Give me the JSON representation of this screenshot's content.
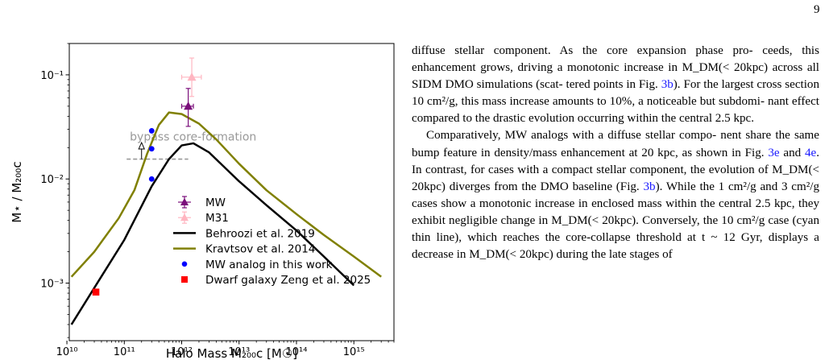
{
  "page_number": "9",
  "chart_data": {
    "type": "line",
    "xlabel": "Halo Mass M₂₀₀c [M☉]",
    "ylabel": "M⋆ / M₂₀₀c",
    "xscale": "log",
    "yscale": "log",
    "xlim": [
      11000000000.0,
      5000000000000000.0
    ],
    "ylim": [
      0.00028,
      0.2
    ],
    "x_ticks": [
      {
        "value": 10000000000.0,
        "label": "10¹⁰"
      },
      {
        "value": 100000000000.0,
        "label": "10¹¹"
      },
      {
        "value": 1000000000000.0,
        "label": "10¹²"
      },
      {
        "value": 10000000000000.0,
        "label": "10¹³"
      },
      {
        "value": 100000000000000.0,
        "label": "10¹⁴"
      },
      {
        "value": 1000000000000000.0,
        "label": "10¹⁵"
      }
    ],
    "y_ticks": [
      {
        "value": 0.001,
        "label": "10⁻³"
      },
      {
        "value": 0.01,
        "label": "10⁻²"
      },
      {
        "value": 0.1,
        "label": "10⁻¹"
      }
    ],
    "series": [
      {
        "name": "Behroozi et al. 2019",
        "kind": "line",
        "color": "#000000",
        "x": [
          12000000000.0,
          30000000000.0,
          100000000000.0,
          300000000000.0,
          600000000000.0,
          1000000000000.0,
          1600000000000.0,
          3000000000000.0,
          10000000000000.0,
          30000000000000.0,
          100000000000000.0,
          300000000000000.0,
          1000000000000000.0
        ],
        "y": [
          0.0004,
          0.0009,
          0.0026,
          0.0085,
          0.0155,
          0.021,
          0.022,
          0.018,
          0.0095,
          0.0056,
          0.0032,
          0.0018,
          0.00095
        ]
      },
      {
        "name": "Kravtsov et al. 2014",
        "kind": "line",
        "color": "#808000",
        "x": [
          12000000000.0,
          30000000000.0,
          80000000000.0,
          150000000000.0,
          250000000000.0,
          400000000000.0,
          600000000000.0,
          1000000000000.0,
          2000000000000.0,
          4000000000000.0,
          10000000000000.0,
          30000000000000.0,
          100000000000000.0,
          300000000000000.0,
          1000000000000000.0,
          3000000000000000.0
        ],
        "y": [
          0.00115,
          0.002,
          0.0042,
          0.0078,
          0.0175,
          0.033,
          0.0435,
          0.042,
          0.034,
          0.024,
          0.014,
          0.0078,
          0.0046,
          0.0029,
          0.0018,
          0.00115
        ]
      },
      {
        "name": "MW",
        "kind": "errorbar",
        "color": "#7b0f7b",
        "marker": "triangle",
        "x": [
          1300000000000.0
        ],
        "y": [
          0.05
        ],
        "xerr": [
          [
            1000000000000.0,
            1600000000000.0
          ]
        ],
        "yerr": [
          [
            0.032,
            0.074
          ]
        ]
      },
      {
        "name": "M31",
        "kind": "errorbar",
        "color": "#ffb6c1",
        "marker": "triangle",
        "x": [
          1500000000000.0
        ],
        "y": [
          0.095
        ],
        "xerr": [
          [
            1000000000000.0,
            2200000000000.0
          ]
        ],
        "yerr": [
          [
            0.062,
            0.145
          ]
        ]
      },
      {
        "name": "MW analog in this work",
        "kind": "scatter",
        "color": "#0000ff",
        "marker": "circle",
        "x": [
          300000000000.0,
          300000000000.0,
          300000000000.0
        ],
        "y": [
          0.029,
          0.0195,
          0.01
        ]
      },
      {
        "name": "Dwarf galaxy Zeng et al. 2025",
        "kind": "scatter",
        "color": "#ff0000",
        "marker": "square",
        "x": [
          32000000000.0
        ],
        "y": [
          0.00082
        ]
      }
    ],
    "legend_order": [
      "MW",
      "M31",
      "Behroozi et al. 2019",
      "Kravtsov et al. 2014",
      "MW analog in this work",
      "Dwarf galaxy Zeng et al. 2025"
    ],
    "legend_placement": "lower-left",
    "annotation": {
      "text": "bypass core-formation",
      "color": "#999999",
      "dashed_line": {
        "x": [
          110000000000.0,
          1300000000000.0
        ],
        "y": [
          0.0155,
          0.0155
        ]
      },
      "arrow": {
        "x": 200000000000.0,
        "y_from": 0.0155,
        "y_to": 0.022
      }
    },
    "grid": false
  },
  "text": {
    "paragraphs": [
      {
        "indent": false,
        "lines": [
          [
            {
              "t": "diffuse stellar component. As the core expansion phase pro-"
            }
          ],
          [
            {
              "t": "ceeds, this enhancement grows, driving a monotonic increase"
            }
          ],
          [
            {
              "t": "in M_DM(< 20kpc) across all SIDM DMO simulations (scat-"
            }
          ],
          [
            {
              "t": "tered points in Fig. "
            },
            {
              "t": "3b",
              "ref": true
            },
            {
              "t": "). For the largest cross section 10 cm²/g,"
            }
          ],
          [
            {
              "t": "this mass increase amounts to 10%, a noticeable but subdomi-"
            }
          ],
          [
            {
              "t": "nant effect compared to the drastic evolution occurring within"
            }
          ],
          [
            {
              "t": "the central 2.5 kpc."
            }
          ]
        ]
      },
      {
        "indent": true,
        "lines": [
          [
            {
              "t": "Comparatively, MW analogs with a diffuse stellar compo-"
            }
          ],
          [
            {
              "t": "nent share the same bump feature in density/mass enhancement"
            }
          ],
          [
            {
              "t": "at 20 kpc, as shown in Fig. "
            },
            {
              "t": "3e",
              "ref": true
            },
            {
              "t": " and "
            },
            {
              "t": "4e",
              "ref": true
            },
            {
              "t": ". In contrast, for cases with"
            }
          ],
          [
            {
              "t": "a compact stellar component, the evolution of M_DM(< 20kpc)"
            }
          ],
          [
            {
              "t": "diverges from the DMO baseline (Fig. "
            },
            {
              "t": "3b",
              "ref": true
            },
            {
              "t": "). While the 1 cm²/g"
            }
          ],
          [
            {
              "t": "and 3 cm²/g cases show a monotonic increase in enclosed mass"
            }
          ],
          [
            {
              "t": "within the central 2.5 kpc, they exhibit negligible change in"
            }
          ],
          [
            {
              "t": "M_DM(< 20kpc). Conversely, the 10 cm²/g case (cyan thin"
            }
          ],
          [
            {
              "t": "line), which reaches the core-collapse threshold at t ~ 12 Gyr,"
            }
          ],
          [
            {
              "t": "displays a decrease in M_DM(< 20kpc) during the late stages of"
            }
          ]
        ]
      }
    ]
  }
}
